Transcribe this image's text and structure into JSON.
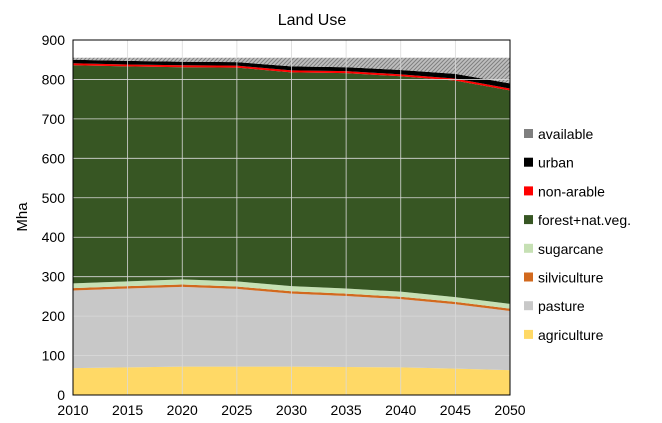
{
  "chart_data": {
    "type": "area",
    "stacked": true,
    "title": "Land Use",
    "xlabel": "",
    "ylabel": "Mha",
    "x": [
      2010,
      2015,
      2020,
      2025,
      2030,
      2035,
      2040,
      2045,
      2050
    ],
    "xlim": [
      2010,
      2050
    ],
    "ylim": [
      0,
      900
    ],
    "yticks": [
      0,
      100,
      200,
      300,
      400,
      500,
      600,
      700,
      800,
      900
    ],
    "grid": {
      "x": true,
      "y": true
    },
    "legend": "right",
    "series": [
      {
        "name": "agriculture",
        "color": "#FFD966",
        "values": [
          68,
          70,
          72,
          72,
          72,
          71,
          70,
          67,
          63
        ]
      },
      {
        "name": "pasture",
        "color": "#C8C8C8",
        "values": [
          197,
          200,
          202,
          197,
          185,
          180,
          173,
          163,
          150
        ]
      },
      {
        "name": "silviculture",
        "color": "#D2691E",
        "values": [
          6,
          6,
          6,
          6,
          6,
          6,
          6,
          6,
          6
        ]
      },
      {
        "name": "sugarcane",
        "color": "#C6E0B4",
        "values": [
          12,
          12,
          13,
          13,
          13,
          13,
          13,
          12,
          12
        ]
      },
      {
        "name": "forest+nat.veg.",
        "color": "#375623",
        "values": [
          553,
          545,
          538,
          542,
          542,
          546,
          546,
          549,
          541
        ]
      },
      {
        "name": "non-arable",
        "color": "#FF0000",
        "values": [
          5,
          5,
          5,
          5,
          5,
          5,
          5,
          5,
          5
        ]
      },
      {
        "name": "urban",
        "color": "#000000",
        "values": [
          9,
          9,
          9,
          9,
          10,
          10,
          11,
          12,
          13
        ]
      },
      {
        "name": "available",
        "color": "#A6A6A6",
        "values": [
          5,
          8,
          10,
          11,
          22,
          24,
          31,
          41,
          65
        ]
      }
    ]
  }
}
